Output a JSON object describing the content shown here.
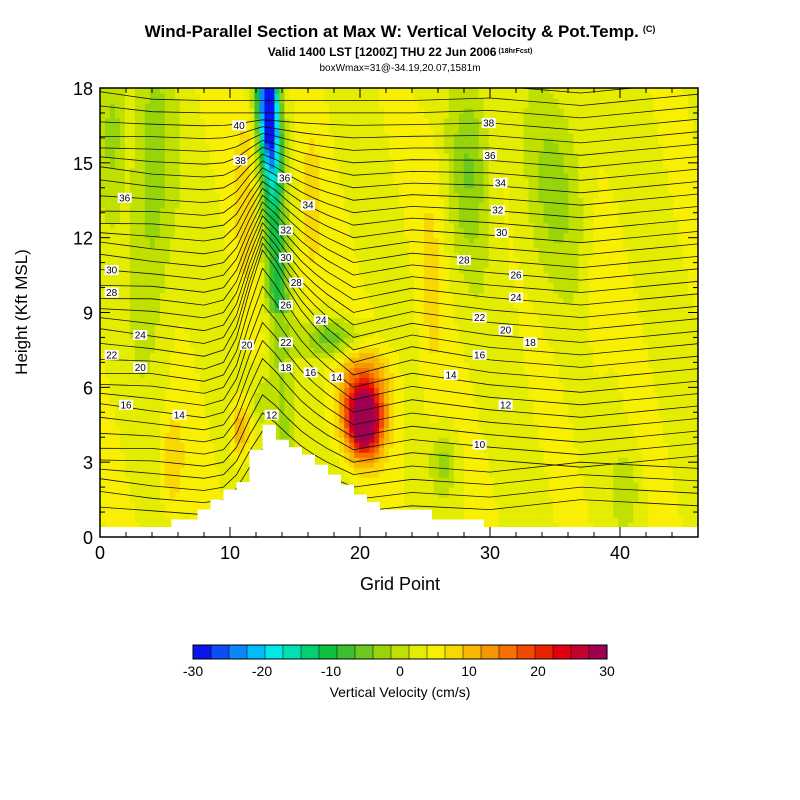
{
  "header": {
    "title": "Wind-Parallel Section at Max W: Vertical Velocity & Pot.Temp.",
    "copyright": "(C)",
    "valid": "Valid 1400 LST [1200Z] THU 22 Jun 2006",
    "forecast": "(18hrFcst)",
    "box": "boxWmax=31@-34.19,20.07,1581m"
  },
  "colors": {
    "contour": "#111111",
    "terrain": "#ffffff",
    "frame": "#000000"
  },
  "chart_data": {
    "type": "contour",
    "xlabel": "Grid Point",
    "ylabel": "Height (Kft MSL)",
    "xlim": [
      0,
      46
    ],
    "ylim": [
      0,
      18
    ],
    "xticks": [
      0,
      10,
      20,
      30,
      40
    ],
    "yticks": [
      0,
      3,
      6,
      9,
      12,
      15,
      18
    ],
    "terrain_height_kft": [
      0.4,
      0.4,
      0.4,
      0.4,
      0.4,
      0.4,
      0.7,
      0.7,
      1.1,
      1.5,
      1.9,
      2.2,
      3.5,
      4.5,
      3.9,
      3.6,
      3.3,
      2.9,
      2.5,
      2.1,
      1.7,
      1.4,
      1.1,
      1.1,
      1.1,
      1.1,
      0.7,
      0.7,
      0.7,
      0.7,
      0.4,
      0.4,
      0.4,
      0.4,
      0.4,
      0.4,
      0.4,
      0.4,
      0.4,
      0.4,
      0.4,
      0.4,
      0.4,
      0.4,
      0.4,
      0.4,
      0.4
    ],
    "theta_contour_labels": [
      {
        "label": "40",
        "x": 10.7,
        "y": 16.5
      },
      {
        "label": "38",
        "x": 10.8,
        "y": 15.1
      },
      {
        "label": "36",
        "x": 14.2,
        "y": 14.4
      },
      {
        "label": "34",
        "x": 16.0,
        "y": 13.3
      },
      {
        "label": "32",
        "x": 14.3,
        "y": 12.3
      },
      {
        "label": "30",
        "x": 14.3,
        "y": 11.2
      },
      {
        "label": "28",
        "x": 15.1,
        "y": 10.2
      },
      {
        "label": "26",
        "x": 14.3,
        "y": 9.3
      },
      {
        "label": "24",
        "x": 17.0,
        "y": 8.7
      },
      {
        "label": "22",
        "x": 14.3,
        "y": 7.8
      },
      {
        "label": "20",
        "x": 11.3,
        "y": 7.7
      },
      {
        "label": "18",
        "x": 14.3,
        "y": 6.8
      },
      {
        "label": "16",
        "x": 16.2,
        "y": 6.6
      },
      {
        "label": "14",
        "x": 18.2,
        "y": 6.4
      },
      {
        "label": "12",
        "x": 13.2,
        "y": 4.9
      },
      {
        "label": "38",
        "x": 29.9,
        "y": 16.6
      },
      {
        "label": "36",
        "x": 30.0,
        "y": 15.3
      },
      {
        "label": "34",
        "x": 30.8,
        "y": 14.2
      },
      {
        "label": "32",
        "x": 30.6,
        "y": 13.1
      },
      {
        "label": "30",
        "x": 30.9,
        "y": 12.2
      },
      {
        "label": "28",
        "x": 28.0,
        "y": 11.1
      },
      {
        "label": "26",
        "x": 32.0,
        "y": 10.5
      },
      {
        "label": "24",
        "x": 32.0,
        "y": 9.6
      },
      {
        "label": "22",
        "x": 29.2,
        "y": 8.8
      },
      {
        "label": "20",
        "x": 31.2,
        "y": 8.3
      },
      {
        "label": "18",
        "x": 33.1,
        "y": 7.8
      },
      {
        "label": "16",
        "x": 29.2,
        "y": 7.3
      },
      {
        "label": "14",
        "x": 27.0,
        "y": 6.5
      },
      {
        "label": "12",
        "x": 31.2,
        "y": 5.3
      },
      {
        "label": "10",
        "x": 29.2,
        "y": 3.7
      },
      {
        "label": "36",
        "x": 1.9,
        "y": 13.6
      },
      {
        "label": "30",
        "x": 0.9,
        "y": 10.7
      },
      {
        "label": "28",
        "x": 0.9,
        "y": 9.8
      },
      {
        "label": "24",
        "x": 3.1,
        "y": 8.1
      },
      {
        "label": "22",
        "x": 0.9,
        "y": 7.3
      },
      {
        "label": "20",
        "x": 3.1,
        "y": 6.8
      },
      {
        "label": "16",
        "x": 2.0,
        "y": 5.3
      },
      {
        "label": "14",
        "x": 6.1,
        "y": 4.9
      }
    ],
    "colorbar": {
      "title": "Vertical Velocity (cm/s)",
      "min": -30,
      "max": 30,
      "step": 3.5294,
      "tick_values": [
        -30,
        -20,
        -10,
        0,
        10,
        20,
        30
      ],
      "tick_labels": [
        "-30",
        "-20",
        "-10",
        "0",
        "10",
        "20",
        "30"
      ],
      "colors": [
        "#0a14f0",
        "#0a4ef4",
        "#0a88f8",
        "#00bcf8",
        "#00e8e8",
        "#00e0b0",
        "#00d070",
        "#10c040",
        "#3cc030",
        "#6ac81e",
        "#98d40a",
        "#c0e000",
        "#e4ec00",
        "#f8f000",
        "#f8d800",
        "#f8b800",
        "#f89600",
        "#f87000",
        "#f04a00",
        "#e82400",
        "#e00010",
        "#c40030",
        "#a00050"
      ]
    },
    "w_features": [
      {
        "x": 20.3,
        "y": 4.6,
        "w_cms": 31,
        "note": "box max"
      },
      {
        "x": 10.8,
        "y": 4.3,
        "w_cms": 12
      },
      {
        "x": 12.8,
        "y": 16.0,
        "w_cms": -20
      },
      {
        "x": 12.0,
        "y": 7.5,
        "w_cms": -12
      }
    ]
  }
}
